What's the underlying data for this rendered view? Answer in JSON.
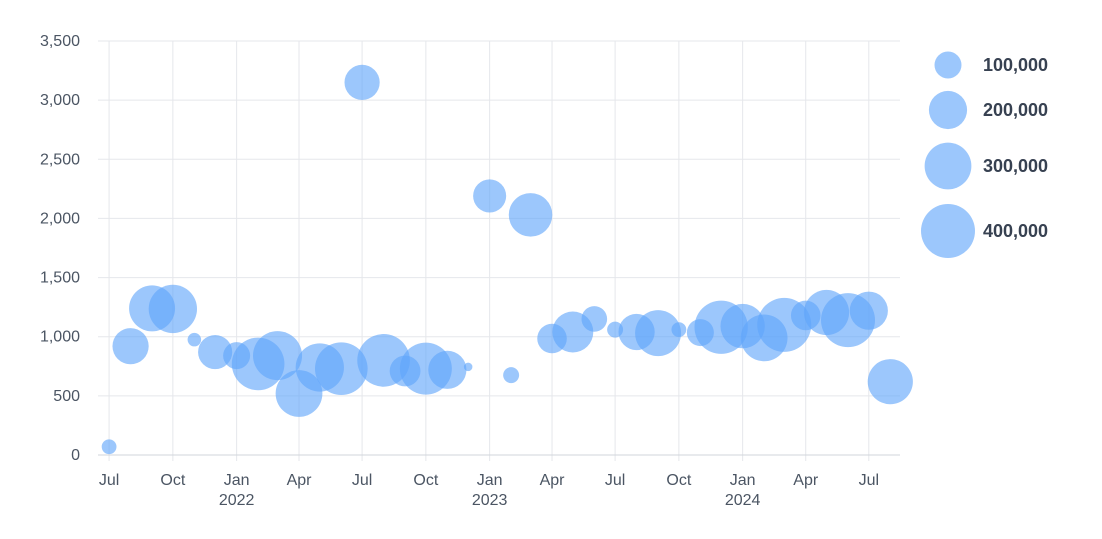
{
  "chart_data": {
    "type": "scatter",
    "subtype": "bubble",
    "title": "",
    "xlabel": "",
    "ylabel": "",
    "ylim": [
      0,
      3500
    ],
    "xlim": [
      "2021-06-15",
      "2024-08-15"
    ],
    "y_ticks": [
      "0",
      "500",
      "1,000",
      "1,500",
      "2,000",
      "2,500",
      "3,000",
      "3,500"
    ],
    "x_ticks": [
      {
        "date": "2021-07-01",
        "label": "Jul",
        "year": ""
      },
      {
        "date": "2021-10-01",
        "label": "Oct",
        "year": ""
      },
      {
        "date": "2022-01-01",
        "label": "Jan",
        "year": "2022"
      },
      {
        "date": "2022-04-01",
        "label": "Apr",
        "year": ""
      },
      {
        "date": "2022-07-01",
        "label": "Jul",
        "year": ""
      },
      {
        "date": "2022-10-01",
        "label": "Oct",
        "year": ""
      },
      {
        "date": "2023-01-01",
        "label": "Jan",
        "year": "2023"
      },
      {
        "date": "2023-04-01",
        "label": "Apr",
        "year": ""
      },
      {
        "date": "2023-07-01",
        "label": "Jul",
        "year": ""
      },
      {
        "date": "2023-10-01",
        "label": "Oct",
        "year": ""
      },
      {
        "date": "2024-01-01",
        "label": "Jan",
        "year": "2024"
      },
      {
        "date": "2024-04-01",
        "label": "Apr",
        "year": ""
      },
      {
        "date": "2024-07-01",
        "label": "Jul",
        "year": ""
      }
    ],
    "grid": true,
    "legend": {
      "position": "right",
      "title": "",
      "entries": [
        {
          "label": "100,000",
          "size": 100000
        },
        {
          "label": "200,000",
          "size": 200000
        },
        {
          "label": "300,000",
          "size": 300000
        },
        {
          "label": "400,000",
          "size": 400000
        }
      ]
    },
    "colors": {
      "bubble": "#60a5fa",
      "grid": "#e5e7eb",
      "axis": "#d1d5db"
    },
    "points": [
      {
        "x": "2021-07-01",
        "y": 70,
        "size": 30000
      },
      {
        "x": "2021-08-01",
        "y": 920,
        "size": 180000
      },
      {
        "x": "2021-09-01",
        "y": 1240,
        "size": 290000
      },
      {
        "x": "2021-10-01",
        "y": 1235,
        "size": 320000
      },
      {
        "x": "2021-11-01",
        "y": 975,
        "size": 25000
      },
      {
        "x": "2021-12-01",
        "y": 870,
        "size": 160000
      },
      {
        "x": "2022-01-01",
        "y": 840,
        "size": 100000
      },
      {
        "x": "2022-02-01",
        "y": 770,
        "size": 380000
      },
      {
        "x": "2022-03-01",
        "y": 840,
        "size": 330000
      },
      {
        "x": "2022-04-01",
        "y": 520,
        "size": 300000
      },
      {
        "x": "2022-05-01",
        "y": 740,
        "size": 320000
      },
      {
        "x": "2022-06-01",
        "y": 730,
        "size": 380000
      },
      {
        "x": "2022-07-01",
        "y": 3150,
        "size": 170000
      },
      {
        "x": "2022-08-01",
        "y": 800,
        "size": 380000
      },
      {
        "x": "2022-09-01",
        "y": 710,
        "size": 130000
      },
      {
        "x": "2022-10-01",
        "y": 730,
        "size": 370000
      },
      {
        "x": "2022-11-01",
        "y": 720,
        "size": 200000
      },
      {
        "x": "2022-12-01",
        "y": 745,
        "size": 10000
      },
      {
        "x": "2023-01-01",
        "y": 2190,
        "size": 150000
      },
      {
        "x": "2023-02-01",
        "y": 675,
        "size": 35000
      },
      {
        "x": "2023-03-01",
        "y": 2030,
        "size": 260000
      },
      {
        "x": "2023-04-01",
        "y": 985,
        "size": 120000
      },
      {
        "x": "2023-05-01",
        "y": 1040,
        "size": 230000
      },
      {
        "x": "2023-06-01",
        "y": 1150,
        "size": 90000
      },
      {
        "x": "2023-07-01",
        "y": 1060,
        "size": 35000
      },
      {
        "x": "2023-08-01",
        "y": 1040,
        "size": 180000
      },
      {
        "x": "2023-09-01",
        "y": 1030,
        "size": 290000
      },
      {
        "x": "2023-10-01",
        "y": 1060,
        "size": 30000
      },
      {
        "x": "2023-11-01",
        "y": 1035,
        "size": 100000
      },
      {
        "x": "2023-12-01",
        "y": 1080,
        "size": 390000
      },
      {
        "x": "2024-01-01",
        "y": 1090,
        "size": 270000
      },
      {
        "x": "2024-02-01",
        "y": 990,
        "size": 300000
      },
      {
        "x": "2024-03-01",
        "y": 1100,
        "size": 400000
      },
      {
        "x": "2024-04-01",
        "y": 1180,
        "size": 120000
      },
      {
        "x": "2024-05-01",
        "y": 1205,
        "size": 280000
      },
      {
        "x": "2024-06-01",
        "y": 1140,
        "size": 400000
      },
      {
        "x": "2024-07-01",
        "y": 1220,
        "size": 200000
      },
      {
        "x": "2024-08-01",
        "y": 620,
        "size": 280000
      }
    ]
  }
}
